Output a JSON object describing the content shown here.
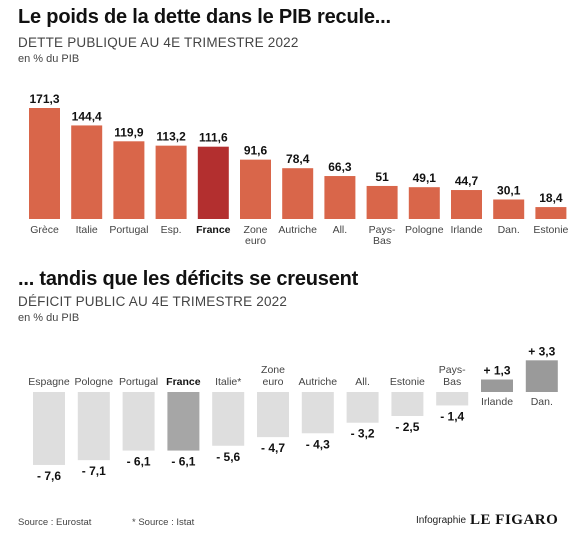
{
  "colors": {
    "bar1": "#d9664a",
    "bar1_highlight": "#b32f2f",
    "bar2": "#dedede",
    "bar2_highlight": "#a6a6a6",
    "bar2_positive": "#9a9a9a"
  },
  "footer": {
    "source_left": "Source : Eurostat",
    "source_right": "* Source : Istat",
    "credit_label": "Infographie",
    "credit_brand": "LE FIGARO"
  },
  "chart_data": [
    {
      "type": "bar",
      "title": "Le poids de la dette dans le PIB recule...",
      "subtitle": "DETTE PUBLIQUE AU 4E TRIMESTRE 2022",
      "unit": "en % du PIB",
      "categories": [
        "Grèce",
        "Italie",
        "Portugal",
        "Esp.",
        "France",
        "Zone euro",
        "Autriche",
        "All.",
        "Pays-Bas",
        "Pologne",
        "Irlande",
        "Dan.",
        "Estonie"
      ],
      "values": [
        171.3,
        144.4,
        119.9,
        113.2,
        111.6,
        91.6,
        78.4,
        66.3,
        51,
        49.1,
        44.7,
        30.1,
        18.4
      ],
      "value_labels": [
        "171,3",
        "144,4",
        "119,9",
        "113,2",
        "111,6",
        "91,6",
        "78,4",
        "66,3",
        "51",
        "49,1",
        "44,7",
        "30,1",
        "18,4"
      ],
      "highlight": "France",
      "ylim": [
        0,
        171.3
      ]
    },
    {
      "type": "bar",
      "title": "... tandis que les déficits se creusent",
      "subtitle": "DÉFICIT PUBLIC AU 4E TRIMESTRE 2022",
      "unit": "en % du PIB",
      "categories": [
        "Espagne",
        "Pologne",
        "Portugal",
        "France",
        "Italie*",
        "Zone euro",
        "Autriche",
        "All.",
        "Estonie",
        "Pays-Bas",
        "Irlande",
        "Dan."
      ],
      "values": [
        -7.6,
        -7.1,
        -6.1,
        -6.1,
        -5.6,
        -4.7,
        -4.3,
        -3.2,
        -2.5,
        -1.4,
        1.3,
        3.3
      ],
      "value_labels": [
        "- 7,6",
        "- 7,1",
        "- 6,1",
        "- 6,1",
        "- 5,6",
        "- 4,7",
        "- 4,3",
        "- 3,2",
        "- 2,5",
        "- 1,4",
        "+ 1,3",
        "+ 3,3"
      ],
      "highlight": "France",
      "ylim": [
        -7.6,
        3.3
      ]
    }
  ]
}
